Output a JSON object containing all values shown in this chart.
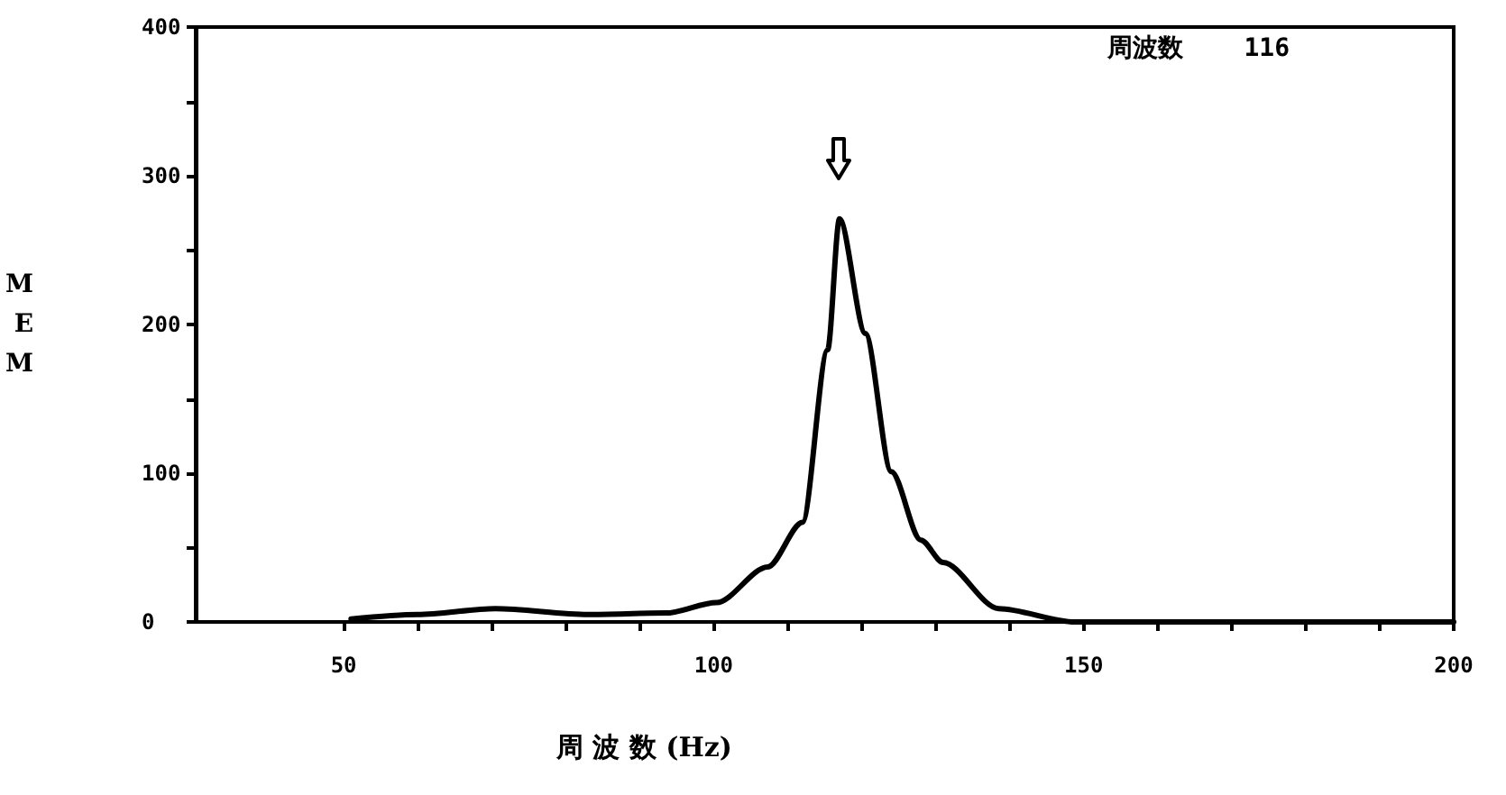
{
  "chart_data": {
    "type": "line",
    "xlabel": "周 波 数 (Hz)",
    "ylabel": "MEM",
    "annotations": [
      "周波数    116"
    ],
    "x": [
      51,
      60,
      70.5,
      83,
      93.5,
      100.4,
      107.3,
      112,
      115.4,
      117,
      120.5,
      124,
      128,
      131,
      138.5,
      148.8,
      160,
      180,
      200
    ],
    "series": [
      {
        "color": "#000000",
        "values": [
          2,
          5,
          9,
          5,
          6,
          13,
          37,
          67,
          183,
          271,
          194,
          101,
          55,
          40,
          9,
          0,
          0,
          0,
          0
        ]
      }
    ],
    "xlim": [
      30,
      200
    ],
    "xticks": [
      50,
      {
        "value": 60,
        "label": null
      },
      {
        "value": 70,
        "label": null
      },
      {
        "value": 80,
        "label": null
      },
      {
        "value": 90,
        "label": null
      },
      100,
      {
        "value": 110,
        "label": null
      },
      {
        "value": 120,
        "label": null
      },
      {
        "value": 130,
        "label": null
      },
      {
        "value": 140,
        "label": null
      },
      150,
      {
        "value": 160,
        "label": null
      },
      {
        "value": 170,
        "label": null
      },
      {
        "value": 180,
        "label": null
      },
      {
        "value": 190,
        "label": null
      },
      200
    ],
    "ylim": [
      0,
      400
    ],
    "yticks": [
      0,
      {
        "value": 50,
        "label": null
      },
      100,
      {
        "value": 150,
        "label": null
      },
      200,
      {
        "value": 250,
        "label": null
      },
      300,
      {
        "value": 350,
        "label": null
      },
      400
    ],
    "grid": false,
    "marker": "none",
    "line_style": "solid"
  }
}
